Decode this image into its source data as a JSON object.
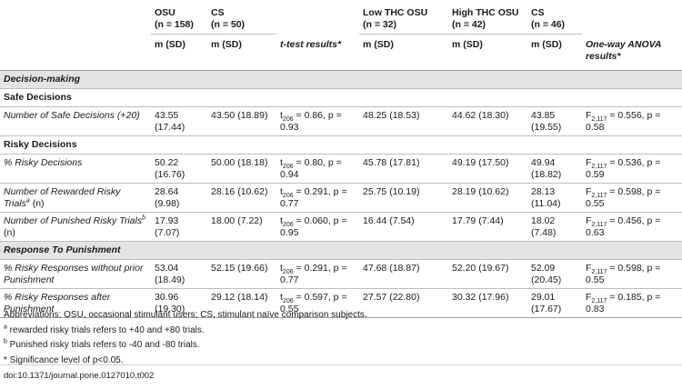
{
  "header": {
    "groups": [
      "OSU",
      "CS",
      "",
      "Low THC OSU",
      "High THC OSU",
      "CS",
      ""
    ],
    "ns": [
      "(n = 158)",
      "(n = 50)",
      "",
      "(n = 32)",
      "(n = 42)",
      "(n = 46)",
      ""
    ],
    "stats": [
      "m (SD)",
      "m (SD)",
      "t-test results*",
      "m (SD)",
      "m (SD)",
      "m (SD)",
      "One-way ANOVA results*"
    ]
  },
  "sections": {
    "decision": "Decision-making",
    "safe": "Safe Decisions",
    "risky": "Risky Decisions",
    "punish": "Response To Punishment"
  },
  "rows": [
    {
      "label": "Number of Safe Decisions (+20)",
      "osu": "43.55 (17.44)",
      "cs": "43.50 (18.89)",
      "t_pre": "t",
      "t_sub": "206",
      "t_val": " = 0.86, p = 0.93",
      "low": "48.25 (18.53)",
      "high": "44.62 (18.30)",
      "cs2": "43.85 (19.55)",
      "f_pre": "F",
      "f_sub": "2,117",
      "f_val": " = 0.556, p = 0.58"
    },
    {
      "label": "% Risky Decisions",
      "osu": "50.22 (16.76)",
      "cs": "50.00 (18.18)",
      "t_pre": "t",
      "t_sub": "206",
      "t_val": " = 0.80, p = 0.94",
      "low": "45.78 (17.81)",
      "high": "49.19 (17.50)",
      "cs2": "49.94 (18.82)",
      "f_pre": "F",
      "f_sub": "2,117",
      "f_val": " = 0.536, p = 0.59"
    },
    {
      "label": "Number of Rewarded Risky Trials",
      "sup": "a",
      "tail": " (n)",
      "osu": "28.64 (9.98)",
      "cs": "28.16 (10.62)",
      "t_pre": "t",
      "t_sub": "206",
      "t_val": " = 0.291, p = 0.77",
      "low": "25.75 (10.19)",
      "high": "28.19 (10.62)",
      "cs2": "28.13 (11.04)",
      "f_pre": "F",
      "f_sub": "2,117",
      "f_val": " = 0.598, p = 0.55"
    },
    {
      "label": "Number of Punished Risky Trials",
      "sup": "b",
      "tail": " (n)",
      "osu": "17.93 (7.07)",
      "cs": "18.00 (7.22)",
      "t_pre": "t",
      "t_sub": "206",
      "t_val": " = 0.060, p = 0.95",
      "low": "16.44 (7.54)",
      "high": "17.79 (7.44)",
      "cs2": "18.02 (7.48)",
      "f_pre": "F",
      "f_sub": "2,117",
      "f_val": " = 0.456, p = 0.63"
    },
    {
      "label": "% Risky Responses without prior Punishment",
      "osu": "53.04 (18.49)",
      "cs": "52.15 (19.66)",
      "t_pre": "t",
      "t_sub": "206",
      "t_val": " = 0.291, p = 0.77",
      "low": "47.68 (18.87)",
      "high": "52.20 (19.67)",
      "cs2": "52.09 (20.45)",
      "f_pre": "F",
      "f_sub": "2,117",
      "f_val": " = 0.598, p = 0.55"
    },
    {
      "label": "% Risky Responses after Punishment",
      "osu": "30.96 (19.30)",
      "cs": "29.12 (18.14)",
      "t_pre": "t",
      "t_sub": "206",
      "t_val": " = 0.597, p = 0.55",
      "low": "27.57 (22.80)",
      "high": "30.32 (17.96)",
      "cs2": "29.01 (17.67)",
      "f_pre": "F",
      "f_sub": "2,117",
      "f_val": " = 0.185, p = 0.83"
    }
  ],
  "notes": {
    "abbrev": "Abbreviations: OSU, occasional stimulant users; CS, stimulant naïve comparison subjects.",
    "a_mark": "a",
    "a_text": " rewarded risky trials refers to +40 and +80 trials.",
    "b_mark": "b",
    "b_text": " Punished risky trials refers to -40 and -80 trials.",
    "star": "* Significance level of p<0.05."
  },
  "doi": "doi:10.1371/journal.pone.0127010.t002"
}
